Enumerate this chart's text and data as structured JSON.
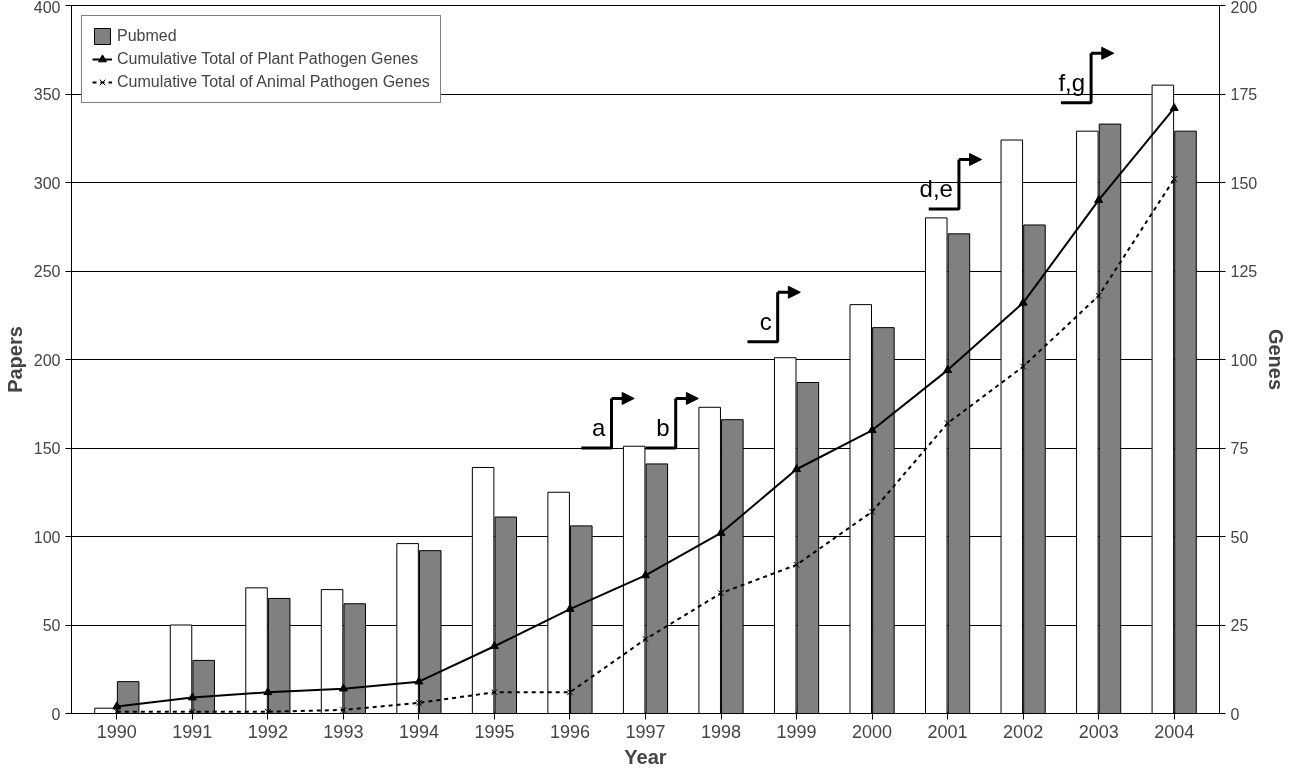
{
  "chart_data": {
    "type": "bar",
    "xlabel": "Year",
    "ylabel": "Papers",
    "y2label": "Genes",
    "categories": [
      "1990",
      "1991",
      "1992",
      "1993",
      "1994",
      "1995",
      "1996",
      "1997",
      "1998",
      "1999",
      "2000",
      "2001",
      "2002",
      "2003",
      "2004"
    ],
    "series": [
      {
        "color": "#ffffff",
        "values": [
          3,
          50,
          71,
          70,
          96,
          139,
          125,
          151,
          173,
          201,
          231,
          280,
          324,
          329,
          355
        ]
      },
      {
        "name": "Pubmed",
        "color": "#808080",
        "values": [
          18,
          30,
          65,
          62,
          92,
          111,
          106,
          141,
          166,
          187,
          218,
          271,
          276,
          333,
          329
        ]
      },
      {
        "name": "Cumulative Total of Plant Pathogen Genes",
        "type": "line",
        "axis": "y2",
        "color": "#000000",
        "marker": "triangle",
        "line_style": "solid",
        "values": [
          2,
          4.5,
          6,
          7,
          9,
          19,
          29.5,
          39,
          51,
          69,
          80,
          97,
          116,
          145,
          171
        ]
      },
      {
        "name": "Cumulative Total of Animal Pathogen Genes",
        "type": "line",
        "axis": "y2",
        "color": "#000000",
        "marker": "cross",
        "line_style": "dashed",
        "values": [
          0.5,
          0.5,
          0.5,
          1,
          3,
          6,
          6,
          21,
          34,
          42,
          57,
          82,
          98,
          118,
          151
        ]
      }
    ],
    "ylim": [
      0,
      400
    ],
    "yticks": [
      0,
      50,
      100,
      150,
      200,
      250,
      300,
      350,
      400
    ],
    "y2lim": [
      0,
      200
    ],
    "y2ticks": [
      0,
      25,
      50,
      75,
      100,
      125,
      150,
      175,
      200
    ],
    "grid": "y",
    "legend": "top left",
    "annotations": [
      "a",
      "b",
      "c",
      "d,e",
      "f,g"
    ]
  }
}
